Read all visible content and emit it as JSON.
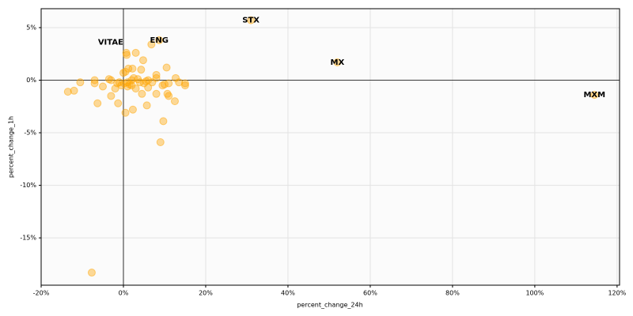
{
  "chart_data": {
    "type": "scatter",
    "x_label": "percent_change_24h",
    "y_label": "percent_change_1h",
    "x": [
      -13.5,
      -12,
      -10.5,
      -7,
      -7,
      -6.3,
      -5,
      -3.5,
      -3,
      -3,
      -2,
      -1.5,
      -1.3,
      -1,
      -0.5,
      0,
      0.2,
      0.5,
      0.5,
      0.7,
      0.8,
      1,
      1,
      1.2,
      1.5,
      2,
      2,
      2.2,
      2.3,
      2.5,
      3,
      3,
      3.5,
      4,
      4.3,
      4.5,
      4.8,
      5,
      5.5,
      5.7,
      6,
      6,
      6.8,
      7,
      8,
      8,
      8,
      8.7,
      9,
      9.5,
      9.7,
      10,
      10.5,
      10.7,
      11,
      11,
      12.5,
      12.7,
      13.5,
      15,
      15,
      -7.7,
      31,
      52,
      114.5
    ],
    "values": [
      -1.1,
      -1.0,
      -0.2,
      -0.3,
      0,
      -2.2,
      -0.6,
      0.1,
      0,
      -1.5,
      -0.8,
      -0.3,
      -2.2,
      -0.2,
      -0.5,
      0.7,
      -0.3,
      0.8,
      -3.1,
      2.6,
      2.4,
      -0.6,
      -0.2,
      1.1,
      -0.4,
      0,
      -0.5,
      1.1,
      -2.8,
      0.2,
      2.6,
      -0.8,
      0.1,
      -0.2,
      1.0,
      -1.3,
      1.9,
      -0.3,
      -0.1,
      -2.4,
      0,
      -0.7,
      3.4,
      -0.2,
      0.5,
      0.2,
      -1.3,
      3.8,
      -5.9,
      -0.5,
      -3.9,
      -0.4,
      1.2,
      -1.3,
      -1.5,
      -0.3,
      -2.0,
      0.2,
      -0.2,
      -0.3,
      -0.5,
      -18.3,
      5.7,
      1.7,
      -1.4
    ],
    "color": "#ffa500",
    "annotations": [
      {
        "text": "STX",
        "x": 31,
        "y": 5.7
      },
      {
        "text": "VITAE",
        "x": -3.1,
        "y": 3.6
      },
      {
        "text": "ENG",
        "x": 8.7,
        "y": 3.8
      },
      {
        "text": "MX",
        "x": 52,
        "y": 1.7
      },
      {
        "text": "MXM",
        "x": 114.5,
        "y": -1.4
      }
    ],
    "xlim": [
      -20,
      120.6
    ],
    "ylim": [
      -19.5,
      6.8
    ],
    "xticks": [
      {
        "value": -20,
        "label": "-20%"
      },
      {
        "value": 0,
        "label": "0%"
      },
      {
        "value": 20,
        "label": "20%"
      },
      {
        "value": 40,
        "label": "40%"
      },
      {
        "value": 60,
        "label": "60%"
      },
      {
        "value": 80,
        "label": "80%"
      },
      {
        "value": 100,
        "label": "100%"
      },
      {
        "value": 120,
        "label": "120%"
      }
    ],
    "yticks": [
      {
        "value": -15,
        "label": "-15%"
      },
      {
        "value": -10,
        "label": "-10%"
      },
      {
        "value": -5,
        "label": "-5%"
      },
      {
        "value": 0,
        "label": "0%"
      },
      {
        "value": 5,
        "label": "5%"
      }
    ],
    "grid": true
  }
}
